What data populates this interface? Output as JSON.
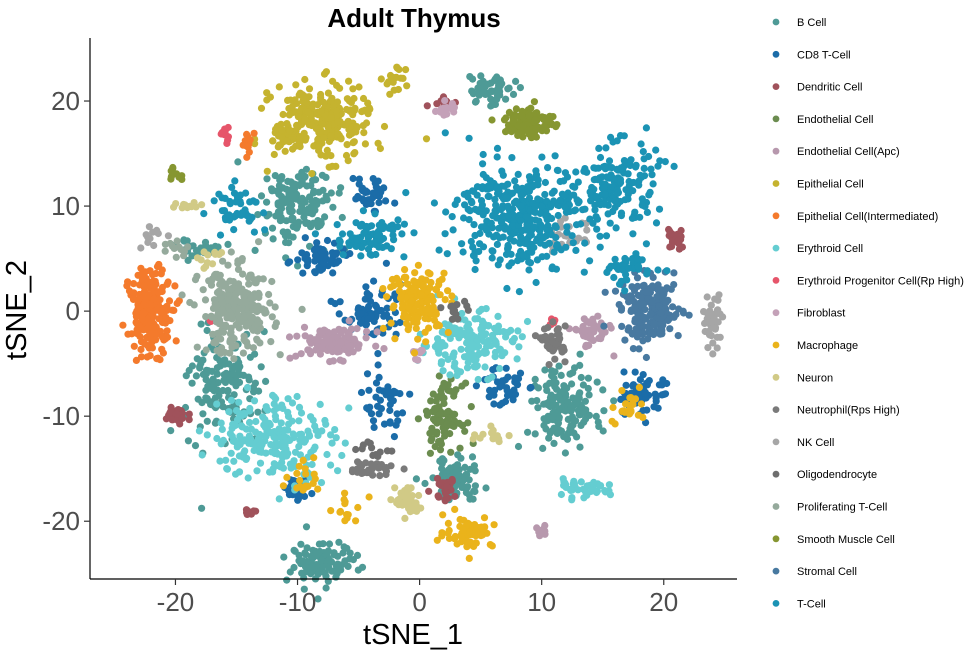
{
  "chart_data": {
    "type": "scatter",
    "title": "Adult Thymus",
    "xlabel": "tSNE_1",
    "ylabel": "tSNE_2",
    "xlim": [
      -27,
      26
    ],
    "ylim": [
      -25.5,
      26
    ],
    "xticks": [
      -20,
      -10,
      0,
      10,
      20
    ],
    "yticks": [
      -20,
      -10,
      0,
      10,
      20
    ],
    "grid": false,
    "legend_position": "right",
    "series": [
      {
        "name": "B Cell",
        "color": "#4e9a96",
        "clusters": [
          [
            -10,
            10,
            3,
            4,
            150
          ],
          [
            -16,
            -7,
            3,
            5,
            140
          ],
          [
            -8,
            -24,
            3,
            2,
            100
          ],
          [
            12,
            -9,
            3,
            4,
            150
          ],
          [
            3,
            -16,
            2,
            2,
            80
          ],
          [
            6,
            21,
            2,
            1.5,
            50
          ],
          [
            -18,
            6,
            2,
            1,
            30
          ]
        ]
      },
      {
        "name": "CD8 T-Cell",
        "color": "#1b6ca8",
        "clusters": [
          [
            -8,
            5,
            2,
            1.5,
            60
          ],
          [
            -4,
            0,
            2.5,
            2.5,
            70
          ],
          [
            -4,
            11,
            1.5,
            1.5,
            40
          ],
          [
            18,
            -8,
            2,
            2,
            60
          ],
          [
            -10,
            -17,
            1,
            1,
            25
          ],
          [
            7,
            -7,
            2,
            2,
            40
          ],
          [
            -3,
            -9,
            2,
            3,
            40
          ]
        ]
      },
      {
        "name": "Dendritic Cell",
        "color": "#a0525b",
        "clusters": [
          [
            -20,
            -10,
            1,
            1,
            35
          ],
          [
            21,
            7,
            0.7,
            1.2,
            25
          ],
          [
            2,
            -17,
            1,
            1,
            25
          ],
          [
            2,
            20,
            1,
            0.8,
            15
          ],
          [
            -14,
            -19,
            1,
            0.5,
            12
          ]
        ]
      },
      {
        "name": "Endothelial Cell",
        "color": "#6b8c4f",
        "clusters": [
          [
            2,
            -10,
            1.5,
            3,
            90
          ]
        ]
      },
      {
        "name": "Endothelial Cell(Apc)",
        "color": "#b798ad",
        "clusters": [
          [
            -7,
            -3,
            3,
            1.5,
            110
          ],
          [
            14,
            -2,
            1.5,
            1.5,
            50
          ],
          [
            10,
            -21,
            0.5,
            0.5,
            10
          ]
        ]
      },
      {
        "name": "Epithelial Cell",
        "color": "#c5b32f",
        "clusters": [
          [
            -8,
            18,
            4,
            3.5,
            260
          ],
          [
            -2,
            22,
            1,
            1.5,
            18
          ],
          [
            -11,
            16,
            1,
            1,
            15
          ]
        ]
      },
      {
        "name": "Epithelial Cell(Intermediated)",
        "color": "#f47a2c",
        "clusters": [
          [
            -22,
            0,
            1.8,
            4,
            190
          ],
          [
            -14,
            16,
            0.5,
            1,
            12
          ]
        ]
      },
      {
        "name": "Erythroid Cell",
        "color": "#64cdd1",
        "clusters": [
          [
            -12,
            -12,
            5,
            4,
            220
          ],
          [
            4,
            -3,
            4,
            3,
            160
          ],
          [
            13,
            -17,
            2.5,
            0.8,
            40
          ]
        ]
      },
      {
        "name": "Erythroid Progenitor Cell(Rp High)",
        "color": "#e6556a",
        "clusters": [
          [
            -16,
            17,
            0.4,
            0.8,
            12
          ],
          [
            11,
            -1,
            0.5,
            0.5,
            5
          ],
          [
            -17,
            -1,
            0.3,
            0.3,
            2
          ]
        ]
      },
      {
        "name": "Fibroblast",
        "color": "#c4a1b8",
        "clusters": [
          [
            2,
            19,
            1,
            1,
            15
          ],
          [
            0,
            -4,
            0.7,
            0.7,
            8
          ]
        ]
      },
      {
        "name": "Macrophage",
        "color": "#eab31b",
        "clusters": [
          [
            0,
            1,
            2.5,
            3,
            150
          ],
          [
            4,
            -21,
            2,
            1.5,
            60
          ],
          [
            17,
            -9,
            1.5,
            2,
            25
          ],
          [
            -9,
            -16,
            2,
            1.5,
            20
          ],
          [
            -6,
            -19,
            1.5,
            1.5,
            15
          ]
        ]
      },
      {
        "name": "Neuron",
        "color": "#d1ca86",
        "clusters": [
          [
            -1,
            -18,
            1,
            1.5,
            40
          ],
          [
            -19,
            10,
            1.5,
            0.5,
            12
          ],
          [
            6,
            -12,
            2,
            1,
            15
          ],
          [
            -17,
            5,
            1,
            1,
            12
          ]
        ]
      },
      {
        "name": "Neutrophil(Rps High)",
        "color": "#7a7a7a",
        "clusters": [
          [
            11,
            -3,
            1,
            1.5,
            40
          ],
          [
            -4,
            -15,
            2,
            0.7,
            35
          ]
        ]
      },
      {
        "name": "NK Cell",
        "color": "#a6a6a6",
        "clusters": [
          [
            24,
            -1,
            0.8,
            2.5,
            45
          ],
          [
            12,
            7,
            2,
            1.5,
            25
          ],
          [
            -22,
            7,
            0.8,
            1,
            12
          ]
        ]
      },
      {
        "name": "Oligodendrocyte",
        "color": "#6e6e6e",
        "clusters": [
          [
            3,
            0,
            1,
            1,
            15
          ],
          [
            -4,
            -13,
            1.5,
            0.8,
            12
          ]
        ]
      },
      {
        "name": "Proliferating T-Cell",
        "color": "#95aa9c",
        "clusters": [
          [
            -15,
            0,
            3,
            4,
            260
          ],
          [
            -20,
            6,
            1,
            0.8,
            12
          ]
        ]
      },
      {
        "name": "Smooth Muscle Cell",
        "color": "#869631",
        "clusters": [
          [
            9,
            18,
            2,
            1.5,
            110
          ],
          [
            -20,
            13,
            0.8,
            0.8,
            10
          ]
        ]
      },
      {
        "name": "Stromal Cell",
        "color": "#4879a0",
        "clusters": [
          [
            19,
            0,
            2.5,
            3,
            170
          ]
        ]
      },
      {
        "name": "T-Cell",
        "color": "#1b93b4",
        "clusters": [
          [
            8,
            9,
            5,
            5,
            360
          ],
          [
            16,
            12,
            3.5,
            4,
            160
          ],
          [
            -4,
            7,
            3,
            2,
            80
          ],
          [
            -15,
            10,
            2,
            2,
            45
          ],
          [
            17,
            4,
            2.5,
            1.5,
            45
          ]
        ]
      }
    ]
  }
}
